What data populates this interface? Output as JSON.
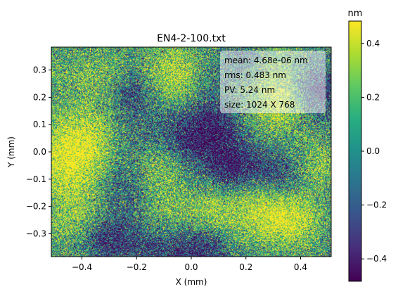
{
  "chart_data": {
    "type": "heatmap",
    "title": "EN4-2-100.txt",
    "xlabel": "X (mm)",
    "ylabel": "Y (mm)",
    "xlim": [
      -0.512,
      0.512
    ],
    "ylim": [
      -0.384,
      0.384
    ],
    "x_ticks": [
      -0.4,
      -0.2,
      0.0,
      0.2,
      0.4
    ],
    "x_tick_labels": [
      "−0.4",
      "−0.2",
      "0.0",
      "0.2",
      "0.4"
    ],
    "y_ticks": [
      0.3,
      0.2,
      0.1,
      0.0,
      -0.1,
      -0.2,
      -0.3
    ],
    "y_tick_labels": [
      "0.3",
      "0.2",
      "0.1",
      "0.0",
      "−0.1",
      "−0.2",
      "−0.3"
    ],
    "colormap": "viridis",
    "colorbar": {
      "label": "nm",
      "range": [
        -0.483,
        0.483
      ],
      "ticks": [
        0.4,
        0.2,
        0.0,
        -0.2,
        -0.4
      ],
      "tick_labels": [
        "0.4",
        "0.2",
        "0.0",
        "−0.2",
        "−0.4"
      ]
    },
    "stats": [
      "mean: 4.68e-06 nm",
      "rms: 0.483 nm",
      "PV: 5.24 nm",
      "size: 1024 X 768"
    ],
    "stats_box_color": "#ffffff",
    "grid": false
  }
}
